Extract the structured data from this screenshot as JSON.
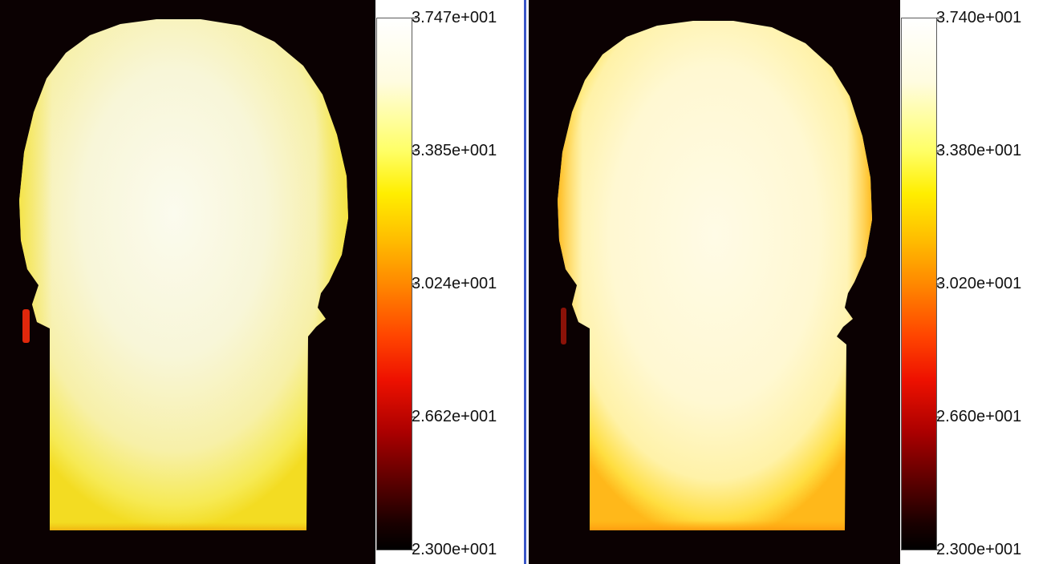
{
  "left_panel": {
    "colorbar": {
      "ticks": [
        "3.747e+001",
        "3.385e+001",
        "3.024e+001",
        "2.662e+001",
        "2.300e+001"
      ],
      "max": 37.47,
      "min": 23.0
    }
  },
  "right_panel": {
    "colorbar": {
      "ticks": [
        "3.740e+001",
        "3.380e+001",
        "3.020e+001",
        "2.660e+001",
        "2.300e+001"
      ],
      "max": 37.4,
      "min": 23.0
    }
  },
  "colors": {
    "background": "#0b0102",
    "divider": "#3a56c8",
    "colormap": [
      "#000000",
      "#550000",
      "#ee1100",
      "#ff8800",
      "#ffee00",
      "#ffff66",
      "#ffffff"
    ]
  }
}
